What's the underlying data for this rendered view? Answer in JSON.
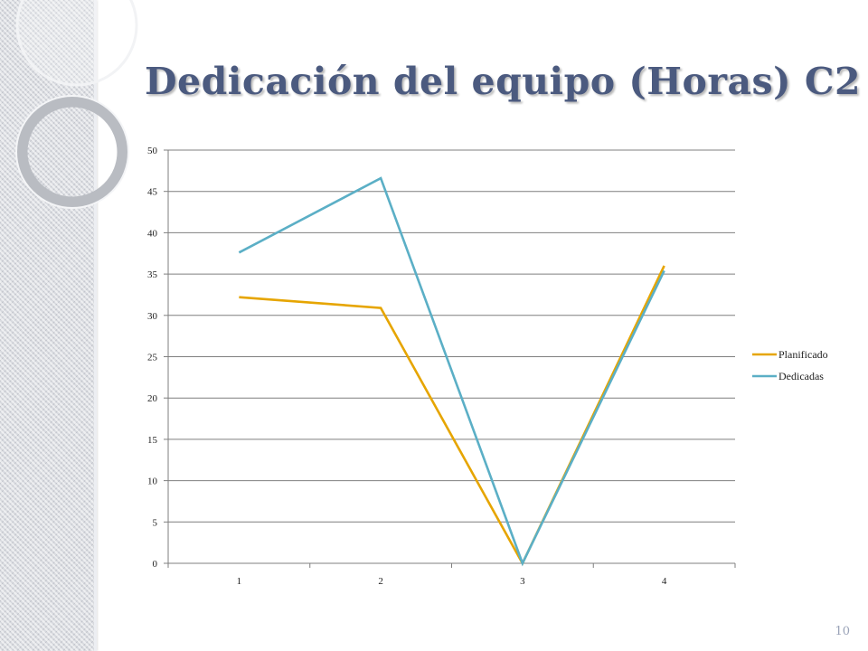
{
  "slide": {
    "title": "Dedicación del equipo (Horas) C2",
    "number": "10"
  },
  "colors": {
    "title": "#4b5a7f",
    "planificado": "#e6a500",
    "dedicadas": "#5bafc6",
    "grid": "#7f7f7f"
  },
  "chart_data": {
    "type": "line",
    "categories": [
      "1",
      "2",
      "3",
      "4"
    ],
    "series": [
      {
        "name": "Planificado",
        "values": [
          32.2,
          30.9,
          0,
          36
        ],
        "color": "#e6a500"
      },
      {
        "name": "Dedicadas",
        "values": [
          37.6,
          46.6,
          0,
          35.4
        ],
        "color": "#5bafc6"
      }
    ],
    "ylim": [
      0,
      50
    ],
    "yticks": [
      0,
      5,
      10,
      15,
      20,
      25,
      30,
      35,
      40,
      45,
      50
    ],
    "grid": true,
    "legend": "right",
    "title": "",
    "xlabel": "",
    "ylabel": ""
  }
}
